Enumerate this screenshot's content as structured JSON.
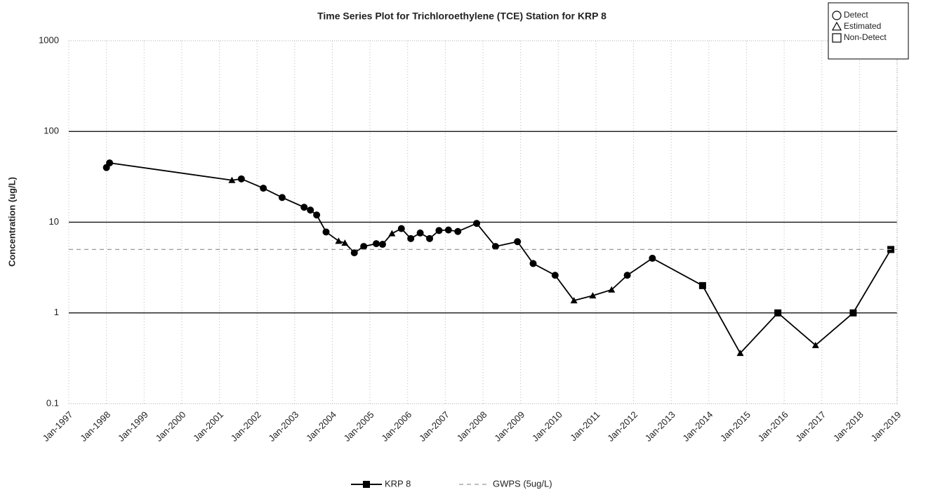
{
  "chart_data": {
    "type": "line",
    "title": "Time Series Plot for Trichloroethylene (TCE) Station for KRP  8",
    "y_label": "Concentration (ug/L)",
    "log_y": true,
    "ylim": [
      0.1,
      1000
    ],
    "yticks": [
      {
        "value": 0.1,
        "label": "0.1"
      },
      1,
      10,
      100,
      1000
    ],
    "xlim": [
      "1997-01",
      "2019-01"
    ],
    "xticks": [
      {
        "value": "1997-01",
        "label": "Jan-1997"
      },
      {
        "value": "1998-01",
        "label": "Jan-1998"
      },
      {
        "value": "1999-01",
        "label": "Jan-1999"
      },
      {
        "value": "2000-01",
        "label": "Jan-2000"
      },
      {
        "value": "2001-01",
        "label": "Jan-2001"
      },
      {
        "value": "2002-01",
        "label": "Jan-2002"
      },
      {
        "value": "2003-01",
        "label": "Jan-2003"
      },
      {
        "value": "2004-01",
        "label": "Jan-2004"
      },
      {
        "value": "2005-01",
        "label": "Jan-2005"
      },
      {
        "value": "2006-01",
        "label": "Jan-2006"
      },
      {
        "value": "2007-01",
        "label": "Jan-2007"
      },
      {
        "value": "2008-01",
        "label": "Jan-2008"
      },
      {
        "value": "2009-01",
        "label": "Jan-2009"
      },
      {
        "value": "2010-01",
        "label": "Jan-2010"
      },
      {
        "value": "2011-01",
        "label": "Jan-2011"
      },
      {
        "value": "2012-01",
        "label": "Jan-2012"
      },
      {
        "value": "2013-01",
        "label": "Jan-2013"
      },
      {
        "value": "2014-01",
        "label": "Jan-2014"
      },
      {
        "value": "2015-01",
        "label": "Jan-2015"
      },
      {
        "value": "2016-01",
        "label": "Jan-2016"
      },
      {
        "value": "2017-01",
        "label": "Jan-2017"
      },
      {
        "value": "2018-01",
        "label": "Jan-2018"
      },
      {
        "value": "2019-01",
        "label": "Jan-2019"
      }
    ],
    "grid": true,
    "marker_legend": [
      {
        "label": "Detect",
        "marker": "circle"
      },
      {
        "label": "Estimated",
        "marker": "triangle"
      },
      {
        "label": "Non-Detect",
        "marker": "square"
      }
    ],
    "series": [
      {
        "name": "KRP  8",
        "color": "#000000",
        "x": [
          "1998-01",
          "1998-02",
          "2001-05",
          "2001-08",
          "2002-03",
          "2002-09",
          "2003-04",
          "2003-06",
          "2003-08",
          "2003-11",
          "2004-03",
          "2004-05",
          "2004-08",
          "2004-11",
          "2005-03",
          "2005-05",
          "2005-08",
          "2005-11",
          "2006-02",
          "2006-05",
          "2006-08",
          "2006-11",
          "2007-02",
          "2007-05",
          "2007-11",
          "2008-05",
          "2008-12",
          "2009-05",
          "2009-12",
          "2010-06",
          "2010-12",
          "2011-06",
          "2011-11",
          "2012-07",
          "2013-11",
          "2014-11",
          "2015-11",
          "2016-11",
          "2017-11",
          "2018-11"
        ],
        "values": [
          40,
          45,
          29,
          30,
          23.7,
          18.7,
          14.6,
          13.6,
          12,
          7.8,
          6.2,
          5.9,
          4.6,
          5.4,
          5.8,
          5.7,
          7.5,
          8.5,
          6.6,
          7.6,
          6.6,
          8.1,
          8.2,
          7.9,
          9.7,
          5.4,
          6.1,
          3.5,
          2.6,
          1.37,
          1.55,
          1.8,
          2.6,
          4,
          2,
          0.36,
          1,
          0.44,
          1,
          5
        ],
        "markers": [
          "circle",
          "circle",
          "triangle",
          "circle",
          "circle",
          "circle",
          "circle",
          "circle",
          "circle",
          "circle",
          "triangle",
          "triangle",
          "circle",
          "circle",
          "circle",
          "circle",
          "triangle",
          "circle",
          "circle",
          "circle",
          "circle",
          "circle",
          "circle",
          "circle",
          "circle",
          "circle",
          "circle",
          "circle",
          "circle",
          "triangle",
          "triangle",
          "triangle",
          "circle",
          "circle",
          "square",
          "triangle",
          "square",
          "triangle",
          "square",
          "square"
        ]
      },
      {
        "name": "GWPS (5ug/L)",
        "color": "#999999",
        "dashed": true,
        "x": [
          "1997-01",
          "2019-01"
        ],
        "values": [
          5,
          5
        ]
      }
    ]
  }
}
